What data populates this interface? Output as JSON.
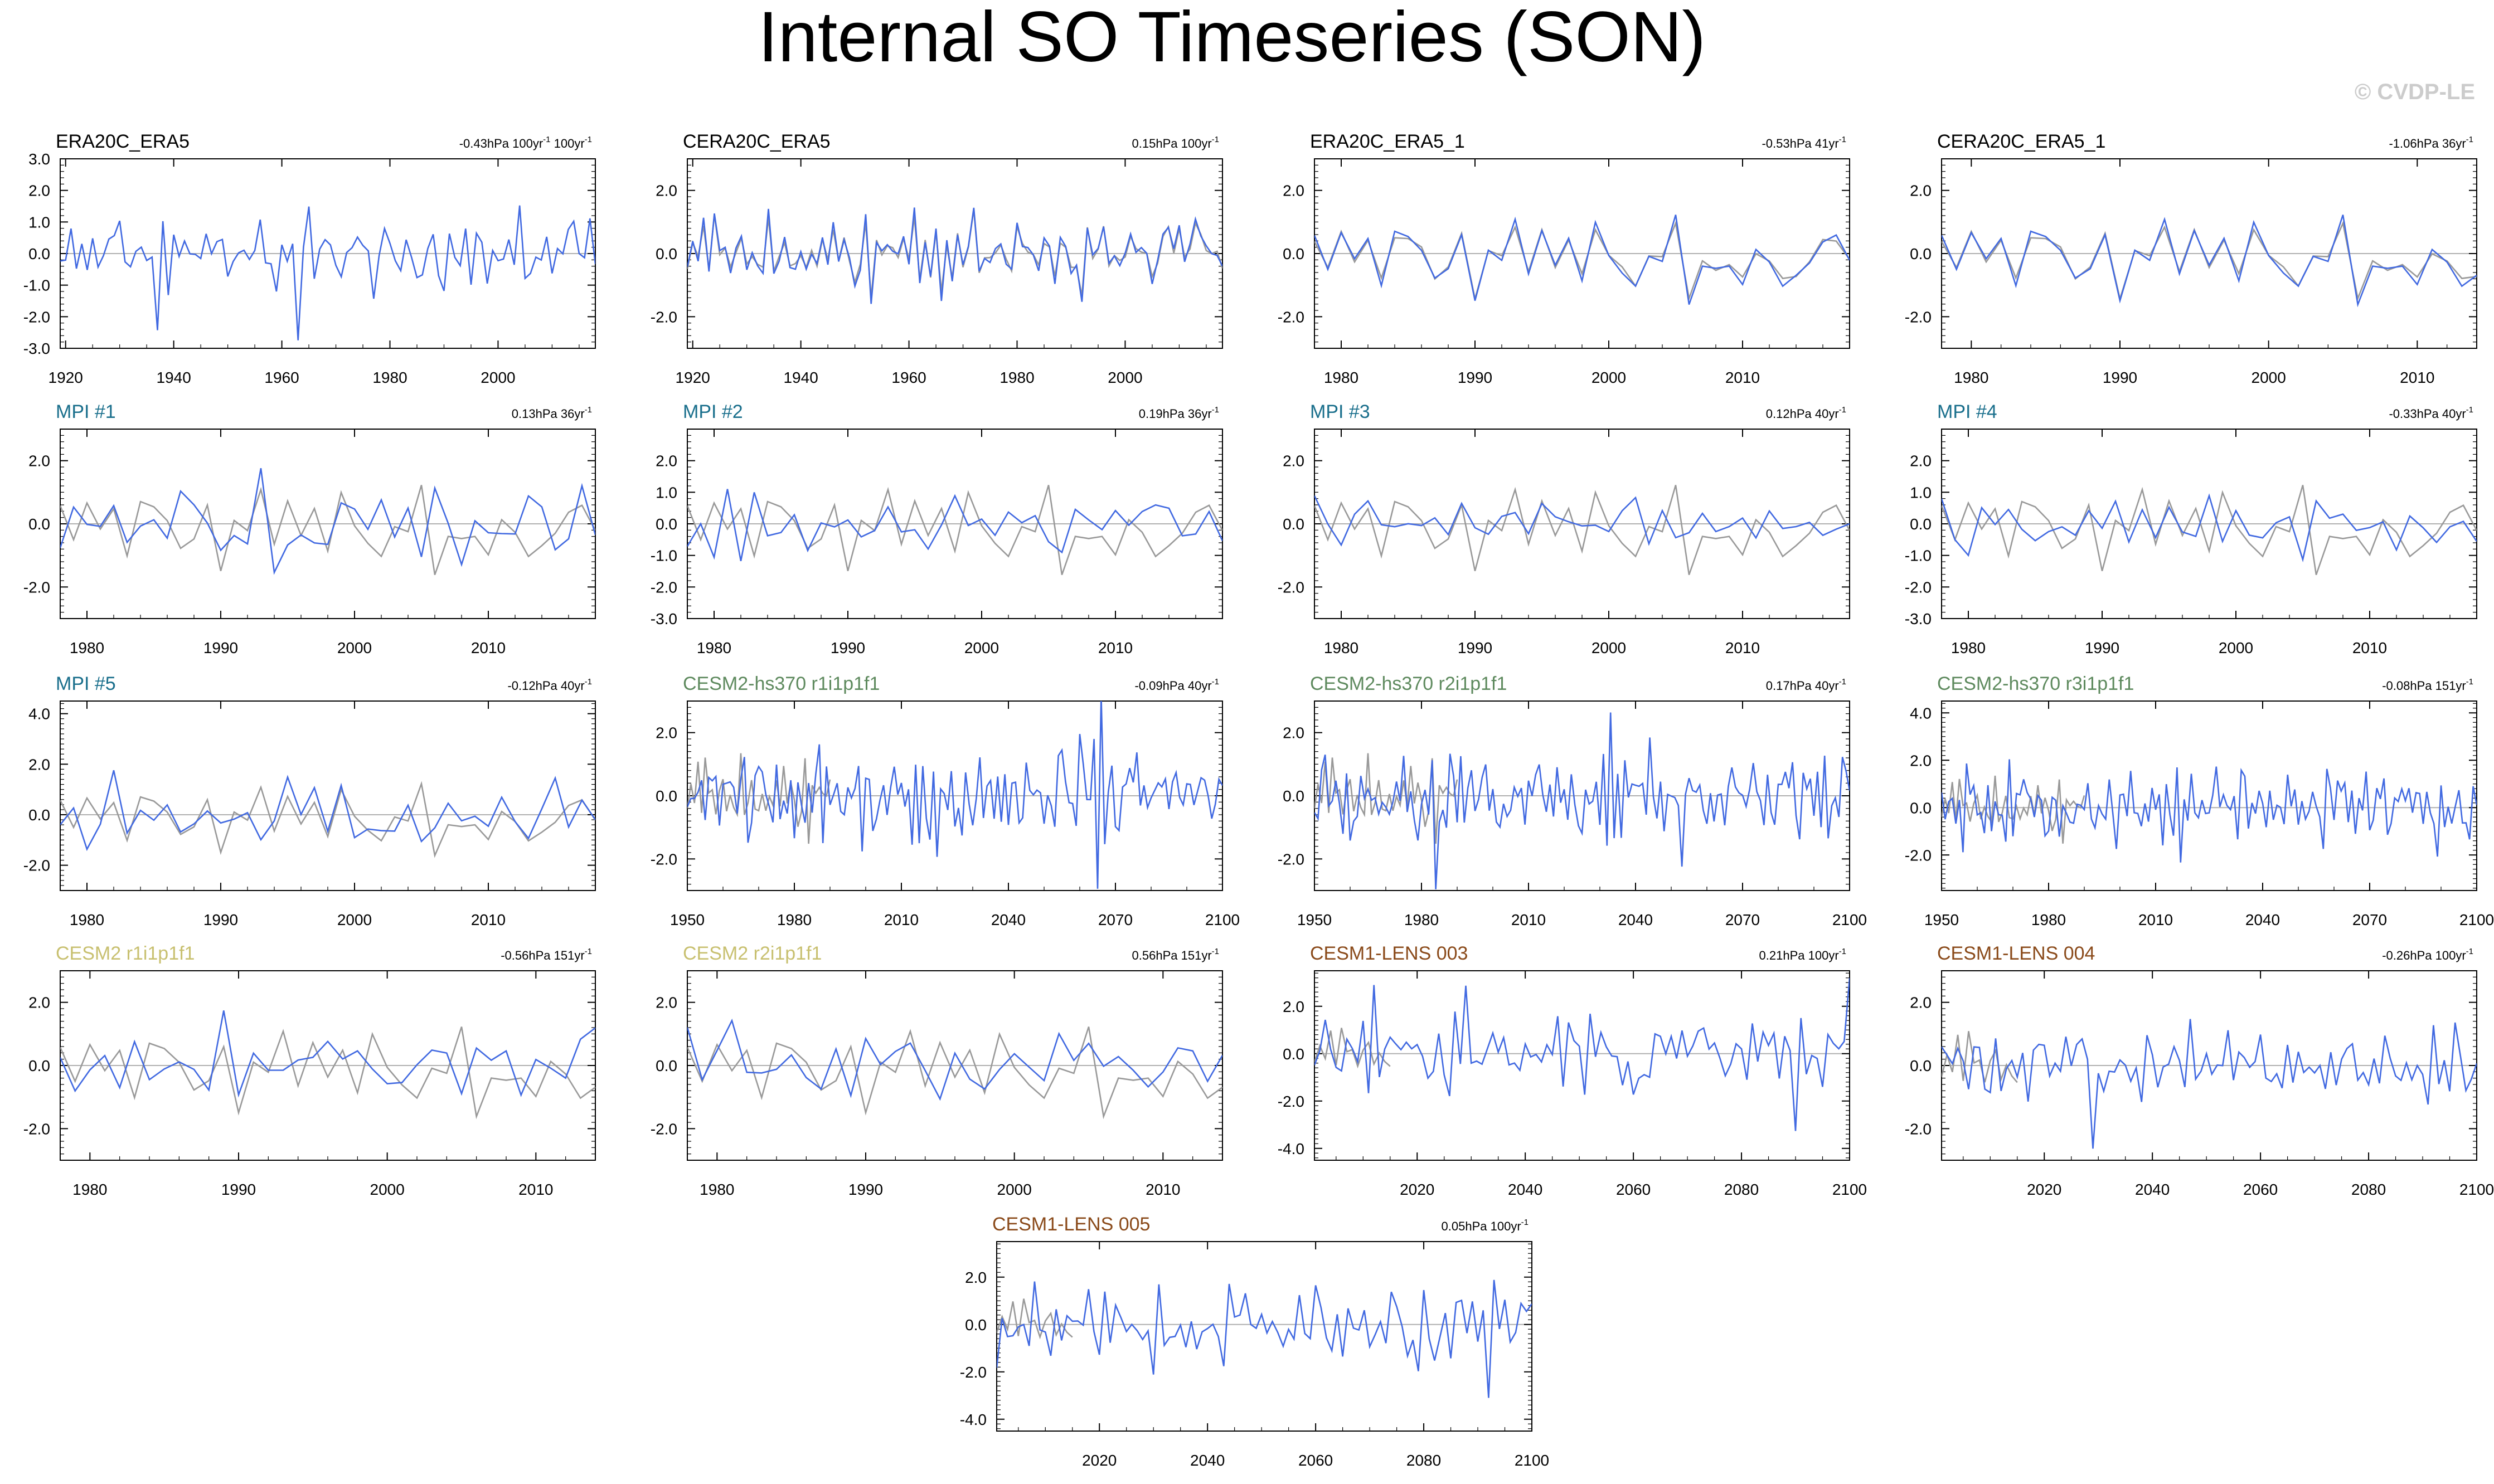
{
  "figure": {
    "title": "Internal SO Timeseries (SON)",
    "credit": "© CVDP-LE",
    "colors": {
      "model_line": "#4169e1",
      "reference_line": "#999999",
      "zero_line": "#b0b0b0",
      "title_black": "#000000",
      "title_mpi": "#1a6f8c",
      "title_hs370": "#5e8a5e",
      "title_cesm2": "#c8c070",
      "title_lens": "#8a4a1a",
      "credit_gray": "#cccccc"
    }
  },
  "chart_data": [
    {
      "type": "line",
      "title": "ERA20C_ERA5",
      "title_color": "title_black",
      "trend": "-0.43hPa 100yr",
      "trend_sup": "-1",
      "trend2": " 100yr",
      "trend2_sup": "-1",
      "xlim": [
        1919,
        2018
      ],
      "ylim": [
        -3.0,
        3.0
      ],
      "yticks": [
        -3.0,
        -2.0,
        -1.0,
        0.0,
        1.0,
        2.0,
        3.0
      ],
      "xticks": [
        1920,
        1940,
        1960,
        1980,
        2000
      ],
      "seed": 11,
      "ref": "none",
      "amp": 1.05
    },
    {
      "type": "line",
      "title": "CERA20C_ERA5",
      "title_color": "title_black",
      "trend": "0.15hPa 100yr",
      "trend_sup": "-1",
      "xlim": [
        1919,
        2018
      ],
      "ylim": [
        -3.0,
        3.0
      ],
      "yticks": [
        -2.0,
        0.0,
        2.0
      ],
      "xticks": [
        1920,
        1940,
        1960,
        1980,
        2000
      ],
      "seed": 12,
      "ref": "close",
      "amp": 1.05
    },
    {
      "type": "line",
      "title": "ERA20C_ERA5_1",
      "title_color": "title_black",
      "trend": "-0.53hPa 41yr",
      "trend_sup": "-1",
      "xlim": [
        1978,
        2018
      ],
      "ylim": [
        -3.0,
        3.0
      ],
      "yticks": [
        -2.0,
        0.0,
        2.0
      ],
      "xticks": [
        1980,
        1990,
        2000,
        2010
      ],
      "seed": 13,
      "ref": "close",
      "amp": 1.0
    },
    {
      "type": "line",
      "title": "CERA20C_ERA5_1",
      "title_color": "title_black",
      "trend": "-1.06hPa 36yr",
      "trend_sup": "-1",
      "xlim": [
        1978,
        2014
      ],
      "ylim": [
        -3.0,
        3.0
      ],
      "yticks": [
        -2.0,
        0.0,
        2.0
      ],
      "xticks": [
        1980,
        1990,
        2000,
        2010
      ],
      "seed": 13,
      "ref": "close",
      "amp": 1.0
    },
    {
      "type": "line",
      "title": "MPI #1",
      "title_color": "title_mpi",
      "trend": "0.13hPa 36yr",
      "trend_sup": "-1",
      "xlim": [
        1978,
        2018
      ],
      "ylim": [
        -3.0,
        3.0
      ],
      "yticks": [
        -2.0,
        0.0,
        2.0
      ],
      "xticks": [
        1980,
        1990,
        2000,
        2010
      ],
      "seed": 21,
      "ref": "era",
      "amp": 0.9
    },
    {
      "type": "line",
      "title": "MPI #2",
      "title_color": "title_mpi",
      "trend": "0.19hPa 36yr",
      "trend_sup": "-1",
      "xlim": [
        1978,
        2018
      ],
      "ylim": [
        -3.0,
        3.0
      ],
      "yticks": [
        -3.0,
        -2.0,
        -1.0,
        0.0,
        1.0,
        2.0
      ],
      "xticks": [
        1980,
        1990,
        2000,
        2010
      ],
      "seed": 22,
      "ref": "era",
      "amp": 0.7
    },
    {
      "type": "line",
      "title": "MPI #3",
      "title_color": "title_mpi",
      "trend": "0.12hPa 40yr",
      "trend_sup": "-1",
      "xlim": [
        1978,
        2018
      ],
      "ylim": [
        -3.0,
        3.0
      ],
      "yticks": [
        -2.0,
        0.0,
        2.0
      ],
      "xticks": [
        1980,
        1990,
        2000,
        2010
      ],
      "seed": 23,
      "ref": "era",
      "amp": 0.8
    },
    {
      "type": "line",
      "title": "MPI #4",
      "title_color": "title_mpi",
      "trend": "-0.33hPa 40yr",
      "trend_sup": "-1",
      "xlim": [
        1978,
        2018
      ],
      "ylim": [
        -3.0,
        3.0
      ],
      "yticks": [
        -3.0,
        -2.0,
        -1.0,
        0.0,
        1.0,
        2.0
      ],
      "xticks": [
        1980,
        1990,
        2000,
        2010
      ],
      "seed": 24,
      "ref": "era",
      "amp": 0.85
    },
    {
      "type": "line",
      "title": "MPI #5",
      "title_color": "title_mpi",
      "trend": "-0.12hPa 40yr",
      "trend_sup": "-1",
      "xlim": [
        1978,
        2018
      ],
      "ylim": [
        -3.0,
        4.5
      ],
      "yticks": [
        -2.0,
        0.0,
        2.0,
        4.0
      ],
      "xticks": [
        1980,
        1990,
        2000,
        2010
      ],
      "seed": 25,
      "ref": "era",
      "amp": 1.0
    },
    {
      "type": "line",
      "title": "CESM2-hs370 r1i1p1f1",
      "title_color": "title_hs370",
      "trend": "-0.09hPa 40yr",
      "trend_sup": "-1",
      "xlim": [
        1950,
        2100
      ],
      "ylim": [
        -3.0,
        3.0
      ],
      "yticks": [
        -2.0,
        0.0,
        2.0
      ],
      "xticks": [
        1950,
        1980,
        2010,
        2040,
        2070,
        2100
      ],
      "seed": 31,
      "ref": "long",
      "amp": 1.15
    },
    {
      "type": "line",
      "title": "CESM2-hs370 r2i1p1f1",
      "title_color": "title_hs370",
      "trend": "0.17hPa 40yr",
      "trend_sup": "-1",
      "xlim": [
        1950,
        2100
      ],
      "ylim": [
        -3.0,
        3.0
      ],
      "yticks": [
        -2.0,
        0.0,
        2.0
      ],
      "xticks": [
        1950,
        1980,
        2010,
        2040,
        2070,
        2100
      ],
      "seed": 32,
      "ref": "long",
      "amp": 1.1
    },
    {
      "type": "line",
      "title": "CESM2-hs370 r3i1p1f1",
      "title_color": "title_hs370",
      "trend": "-0.08hPa 151yr",
      "trend_sup": "-1",
      "xlim": [
        1950,
        2100
      ],
      "ylim": [
        -3.5,
        4.5
      ],
      "yticks": [
        -2.0,
        0.0,
        2.0,
        4.0
      ],
      "xticks": [
        1950,
        1980,
        2010,
        2040,
        2070,
        2100
      ],
      "seed": 33,
      "ref": "long",
      "amp": 1.3
    },
    {
      "type": "line",
      "title": "CESM2 r1i1p1f1",
      "title_color": "title_cesm2",
      "trend": "-0.56hPa 151yr",
      "trend_sup": "-1",
      "xlim": [
        1978,
        2014
      ],
      "ylim": [
        -3.0,
        3.0
      ],
      "yticks": [
        -2.0,
        0.0,
        2.0
      ],
      "xticks": [
        1980,
        1990,
        2000,
        2010
      ],
      "seed": 41,
      "ref": "era",
      "amp": 1.1
    },
    {
      "type": "line",
      "title": "CESM2 r2i1p1f1",
      "title_color": "title_cesm2",
      "trend": "0.56hPa 151yr",
      "trend_sup": "-1",
      "xlim": [
        1978,
        2014
      ],
      "ylim": [
        -3.0,
        3.0
      ],
      "yticks": [
        -2.0,
        0.0,
        2.0
      ],
      "xticks": [
        1980,
        1990,
        2000,
        2010
      ],
      "seed": 42,
      "ref": "era",
      "amp": 1.0
    },
    {
      "type": "line",
      "title": "CESM1-LENS 003",
      "title_color": "title_lens",
      "trend": "0.21hPa 100yr",
      "trend_sup": "-1",
      "xlim": [
        2001,
        2100
      ],
      "ylim": [
        -4.5,
        3.5
      ],
      "yticks": [
        -4.0,
        -2.0,
        0.0,
        2.0
      ],
      "xticks": [
        2020,
        2040,
        2060,
        2080,
        2100
      ],
      "seed": 51,
      "ref": "short",
      "amp": 1.25
    },
    {
      "type": "line",
      "title": "CESM1-LENS 004",
      "title_color": "title_lens",
      "trend": "-0.26hPa 100yr",
      "trend_sup": "-1",
      "xlim": [
        2001,
        2100
      ],
      "ylim": [
        -3.0,
        3.0
      ],
      "yticks": [
        -2.0,
        0.0,
        2.0
      ],
      "xticks": [
        2020,
        2040,
        2060,
        2080,
        2100
      ],
      "seed": 52,
      "ref": "short",
      "amp": 1.0
    },
    {
      "type": "line",
      "title": "CESM1-LENS 005",
      "title_color": "title_lens",
      "trend": "0.05hPa 100yr",
      "trend_sup": "-1",
      "xlim": [
        2001,
        2100
      ],
      "ylim": [
        -4.5,
        3.5
      ],
      "yticks": [
        -4.0,
        -2.0,
        0.0,
        2.0
      ],
      "xticks": [
        2020,
        2040,
        2060,
        2080,
        2100
      ],
      "seed": 53,
      "ref": "short",
      "amp": 1.3
    }
  ]
}
